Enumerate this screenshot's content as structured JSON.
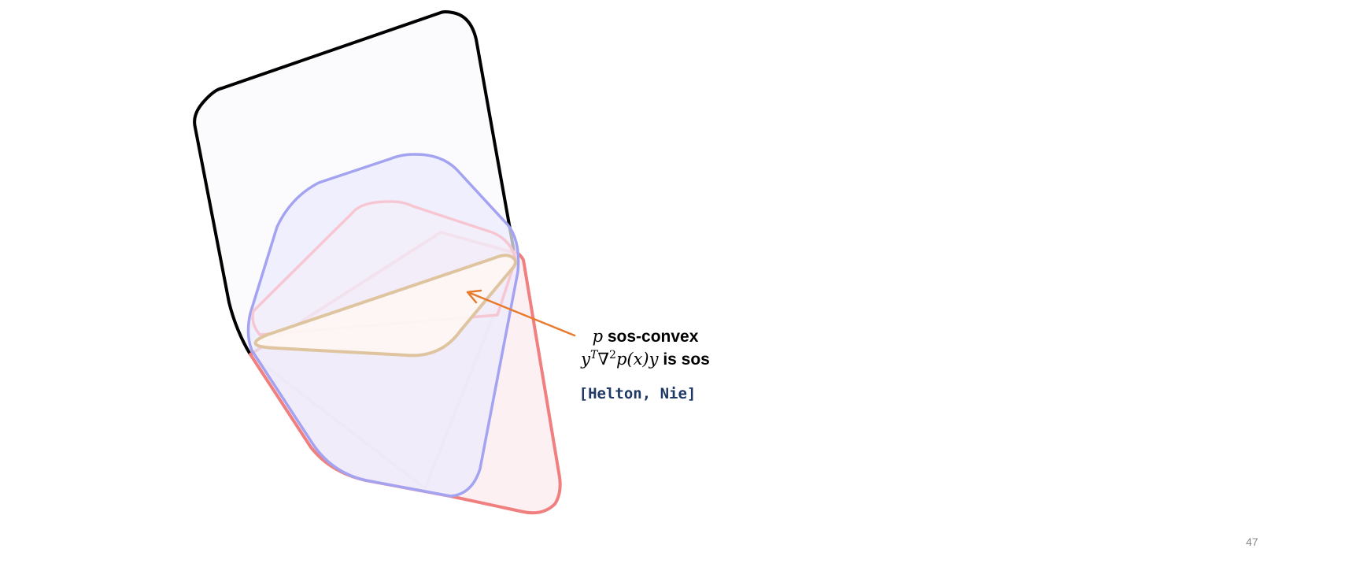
{
  "annotation": {
    "line1_math": "p",
    "line1_text": "sos-convex",
    "line2_math_y": "y",
    "line2_sup_t": "T",
    "line2_nabla": "∇",
    "line2_sup_2": "2",
    "line2_math_rest": "p(x)y",
    "line2_text": "is sos"
  },
  "citation": "[Helton, Nie]",
  "page_number": "47",
  "colors": {
    "outer_set": "#000000",
    "blue_set": "#a3a3f2",
    "pink_set": "#f7c6d3",
    "red_set": "#f08080",
    "inner_set": "#dfc4a0",
    "arrow": "#e87a2e",
    "citation": "#1f3864"
  }
}
